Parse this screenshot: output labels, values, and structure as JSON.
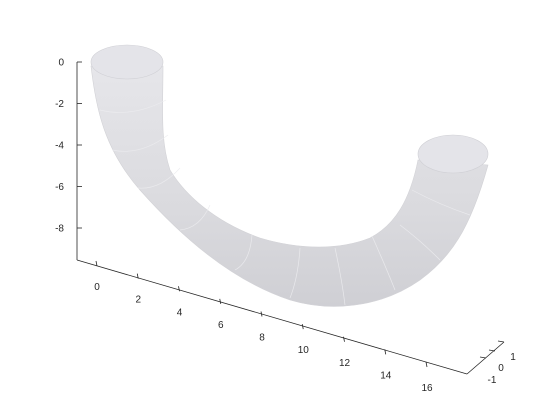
{
  "chart_data": {
    "type": "surface",
    "title": "",
    "xlabel": "",
    "ylabel": "",
    "zlabel": "",
    "x_ticks": [
      "0",
      "2",
      "4",
      "6",
      "8",
      "10",
      "12",
      "14",
      "16"
    ],
    "y_ticks": [
      "-1",
      "0",
      "1"
    ],
    "z_ticks": [
      "0",
      "-2",
      "-4",
      "-6",
      "-8"
    ],
    "xlim": [
      0,
      17
    ],
    "ylim": [
      -1,
      1
    ],
    "zlim": [
      -10,
      0
    ],
    "grid": false,
    "surface_color": "#dcdce0",
    "shape": "tube",
    "centerline": {
      "x": [
        0,
        0.3,
        1.2,
        2.6,
        4.5,
        6.7,
        9.0,
        11.3,
        13.4,
        15.0,
        16.0,
        16.3
      ],
      "z": [
        0,
        -1.9,
        -3.9,
        -5.9,
        -7.6,
        -8.8,
        -9.3,
        -8.8,
        -7.6,
        -5.7,
        -3.7,
        -2.2
      ]
    },
    "tube_radius": 1.2,
    "ends": [
      {
        "x": 0,
        "y": 0,
        "z": 0
      },
      {
        "x": 16.3,
        "y": 0,
        "z": -2.2
      }
    ]
  }
}
